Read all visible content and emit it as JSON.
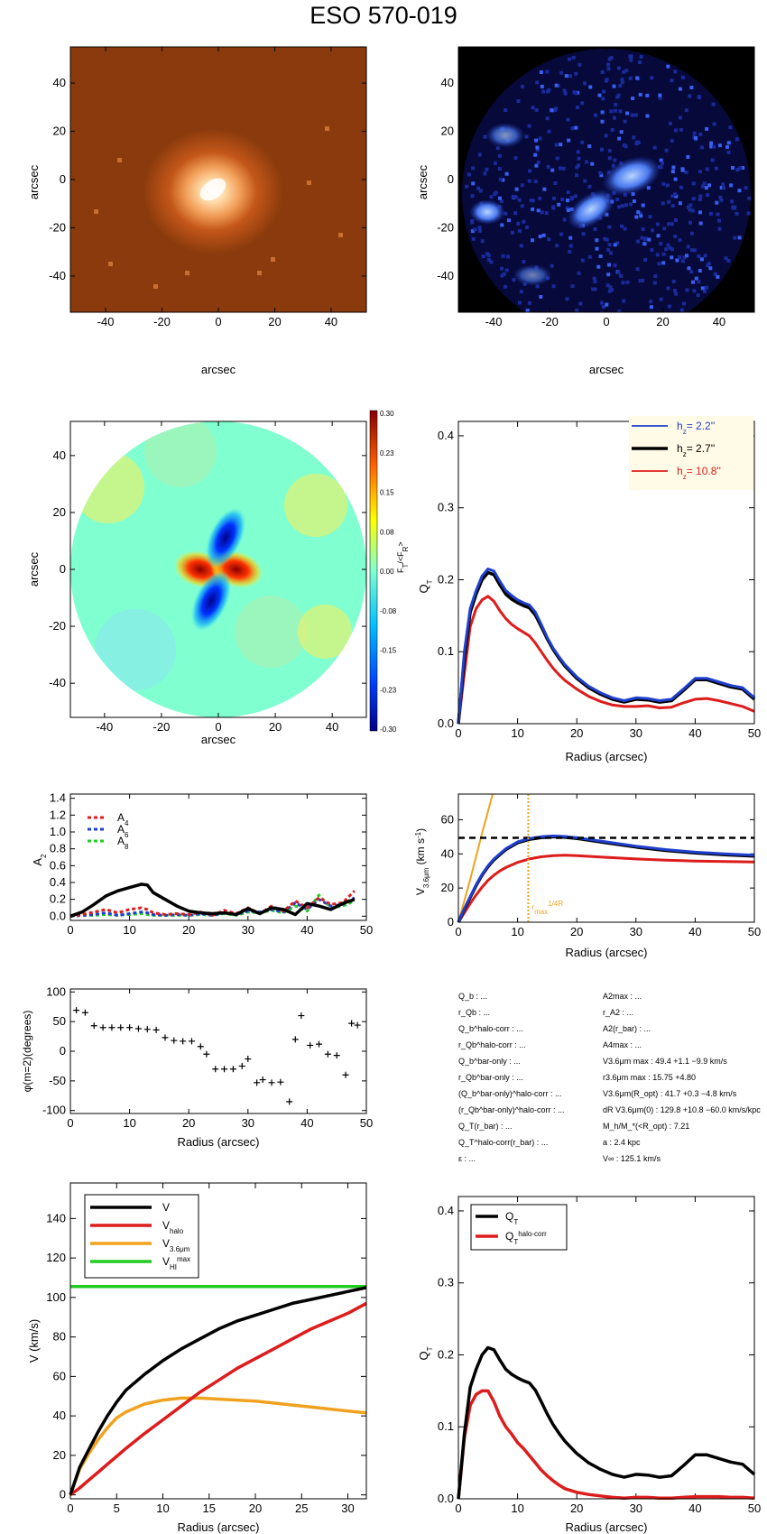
{
  "title": "ESO 570-019",
  "colors": {
    "blue": "#1f3fcc",
    "black": "#000000",
    "red": "#dd1c1c",
    "orange": "#f0a21e",
    "green": "#22cc22",
    "cream": "#fffbe6"
  },
  "panels": {
    "image1": {
      "xlabel": "arcsec",
      "ylabel": "arcsec",
      "ticks": [
        "-40",
        "-20",
        "0",
        "20",
        "40"
      ]
    },
    "image2": {
      "xlabel": "arcsec",
      "ylabel": "arcsec",
      "ticks": [
        "-40",
        "-20",
        "0",
        "20",
        "40"
      ]
    },
    "forcemap": {
      "xlabel": "arcsec",
      "ylabel": "arcsec",
      "ticks": [
        "-40",
        "-20",
        "0",
        "20",
        "40"
      ],
      "colorbar_ticks": [
        "0.30",
        "0.23",
        "0.15",
        "0.08",
        "0.00",
        "-0.08",
        "-0.15",
        "-0.23",
        "-0.30"
      ],
      "colorbar_label": "F_T/<F_R>"
    },
    "info": {
      "left": [
        [
          "Q_b : ...",
          "",
          ""
        ],
        [
          "r_Qb : ...",
          "",
          ""
        ],
        [
          "Q_b^halo-corr : ...",
          "",
          ""
        ],
        [
          "r_Qb^halo-corr : ...",
          "",
          ""
        ],
        [
          "Q_b^bar-only : ...",
          "",
          ""
        ],
        [
          "r_Qb^bar-only : ...",
          "",
          ""
        ],
        [
          "(Q_b^bar-only)^halo-corr : ...",
          "",
          ""
        ],
        [
          "(r_Qb^bar-only)^halo-corr : ...",
          "",
          ""
        ],
        [
          "Q_T(r_bar) : ...",
          "",
          ""
        ],
        [
          "Q_T^halo-corr(r_bar) : ...",
          "",
          ""
        ],
        [
          "ε : ...",
          "",
          ""
        ]
      ],
      "right": [
        "A2max : ...",
        "r_A2 : ...",
        "A2(r_bar) : ...",
        "A4max : ...",
        "V3.6μm max :  49.4 +1.1 −9.9 km/s",
        "r3.6μm max :  15.75 +4.80",
        "V3.6μm(R_opt) :  41.7 +0.3 −4.8 km/s",
        "dR V3.6μm(0) :  129.8 +10.8 −60.0 km/s/kpc",
        "M_h/M_*(<R_opt) :  7.21",
        "a :   2.4 kpc",
        "V∞ :  125.1 km/s"
      ]
    }
  },
  "chart_data": [
    {
      "type": "heatmap",
      "id": "image1",
      "title": "",
      "xlabel": "arcsec",
      "ylabel": "arcsec",
      "xlim": [
        -52,
        52
      ],
      "ylim": [
        -55,
        55
      ]
    },
    {
      "type": "heatmap",
      "id": "image2",
      "title": "",
      "xlabel": "arcsec",
      "ylabel": "arcsec",
      "xlim": [
        -52,
        52
      ],
      "ylim": [
        -55,
        55
      ]
    },
    {
      "type": "heatmap",
      "id": "forcemap",
      "title": "",
      "xlabel": "arcsec",
      "ylabel": "arcsec",
      "xlim": [
        -52,
        52
      ],
      "ylim": [
        -52,
        52
      ],
      "zlim": [
        -0.3,
        0.3
      ]
    },
    {
      "type": "line",
      "id": "qt",
      "xlabel": "Radius (arcsec)",
      "ylabel": "Q_T",
      "xlim": [
        0,
        50
      ],
      "ylim": [
        0,
        0.42
      ],
      "x": [
        0,
        1,
        2,
        3,
        4,
        5,
        6,
        7,
        8,
        9,
        10,
        11,
        12,
        13,
        14,
        15,
        16,
        17,
        18,
        20,
        22,
        24,
        26,
        28,
        30,
        32,
        34,
        36,
        38,
        40,
        42,
        44,
        46,
        48,
        50
      ],
      "legend_pos": "top-right",
      "series": [
        {
          "name": "h_z=  2.2''",
          "color": "#1f3fcc",
          "values": [
            0,
            0.1,
            0.16,
            0.185,
            0.205,
            0.215,
            0.212,
            0.198,
            0.185,
            0.178,
            0.172,
            0.168,
            0.165,
            0.155,
            0.138,
            0.12,
            0.105,
            0.093,
            0.082,
            0.065,
            0.052,
            0.043,
            0.036,
            0.032,
            0.036,
            0.035,
            0.032,
            0.034,
            0.048,
            0.063,
            0.063,
            0.058,
            0.053,
            0.05,
            0.036
          ]
        },
        {
          "name": "h_z=  2.7''",
          "color": "#000000",
          "values": [
            0,
            0.09,
            0.155,
            0.18,
            0.2,
            0.21,
            0.207,
            0.193,
            0.18,
            0.173,
            0.168,
            0.164,
            0.161,
            0.151,
            0.135,
            0.118,
            0.103,
            0.091,
            0.08,
            0.063,
            0.05,
            0.041,
            0.034,
            0.03,
            0.034,
            0.033,
            0.03,
            0.032,
            0.046,
            0.061,
            0.061,
            0.056,
            0.051,
            0.048,
            0.034
          ]
        },
        {
          "name": "h_z=  10.8''",
          "color": "#dd1c1c",
          "values": [
            0,
            0.07,
            0.135,
            0.16,
            0.172,
            0.177,
            0.17,
            0.157,
            0.146,
            0.138,
            0.132,
            0.127,
            0.122,
            0.112,
            0.1,
            0.088,
            0.077,
            0.068,
            0.06,
            0.048,
            0.038,
            0.031,
            0.026,
            0.024,
            0.024,
            0.025,
            0.022,
            0.023,
            0.029,
            0.034,
            0.035,
            0.032,
            0.028,
            0.024,
            0.017
          ]
        }
      ]
    },
    {
      "type": "line",
      "id": "a2",
      "xlabel": "",
      "ylabel": "A_2",
      "xlim": [
        0,
        50
      ],
      "ylim": [
        -0.05,
        1.45
      ],
      "x": [
        0,
        2,
        4,
        6,
        8,
        10,
        12,
        13,
        14,
        16,
        18,
        20,
        22,
        24,
        26,
        28,
        30,
        32,
        34,
        36,
        38,
        40,
        42,
        44,
        46,
        48
      ],
      "legend_pos": "top-left",
      "series": [
        {
          "name": "A2",
          "color": "#000000",
          "values": [
            0,
            0.05,
            0.14,
            0.24,
            0.3,
            0.34,
            0.38,
            0.37,
            0.28,
            0.2,
            0.12,
            0.06,
            0.04,
            0.03,
            0.04,
            0.02,
            0.09,
            0.03,
            0.1,
            0.08,
            0.02,
            0.15,
            0.12,
            0.08,
            0.15,
            0.2
          ]
        },
        {
          "name": "A4",
          "color": "#dd1c1c",
          "values": [
            0,
            0.02,
            0.05,
            0.08,
            0.04,
            0.08,
            0.1,
            0.08,
            0.04,
            0.02,
            0.03,
            0.02,
            0.05,
            0.01,
            0.07,
            0.03,
            0.1,
            0.03,
            0.12,
            0.06,
            0.18,
            0.1,
            0.22,
            0.14,
            0.16,
            0.3
          ]
        },
        {
          "name": "A6",
          "color": "#1f3fcc",
          "values": [
            0,
            0.01,
            0.02,
            0.04,
            0.01,
            0.03,
            0.05,
            0.04,
            0.02,
            0.01,
            0.02,
            0.01,
            0.03,
            0.01,
            0.04,
            0.02,
            0.06,
            0.05,
            0.08,
            0.05,
            0.16,
            0.08,
            0.2,
            0.12,
            0.14,
            0.22
          ]
        },
        {
          "name": "A8",
          "color": "#22cc22",
          "values": [
            0,
            0.01,
            0.01,
            0.02,
            0.01,
            0.02,
            0.03,
            0.02,
            0.01,
            0.01,
            0.01,
            0.01,
            0.02,
            0.01,
            0.03,
            0.01,
            0.05,
            0.04,
            0.07,
            0.04,
            0.12,
            0.06,
            0.25,
            0.1,
            0.12,
            0.18
          ]
        }
      ]
    },
    {
      "type": "line",
      "id": "v36",
      "xlabel": "Radius (arcsec)",
      "ylabel": "V_3.6μm (km s^-1)",
      "xlim": [
        0,
        50
      ],
      "ylim": [
        0,
        75
      ],
      "x": [
        0,
        1,
        2,
        3,
        4,
        5,
        6,
        7,
        8,
        10,
        12,
        14,
        16,
        18,
        20,
        25,
        30,
        35,
        40,
        45,
        50
      ],
      "vmax": 49.4,
      "rmax_line": 11.8,
      "rmax_label": "r_max^1/4R_bar",
      "series": [
        {
          "name": "blue",
          "color": "#1f3fcc",
          "values": [
            0,
            8,
            15,
            22,
            28,
            33,
            37,
            40,
            43,
            47,
            49,
            50,
            50.5,
            50.2,
            49.5,
            47,
            44.5,
            42.5,
            41,
            40,
            39.2
          ]
        },
        {
          "name": "black",
          "color": "#000000",
          "values": [
            0,
            7.5,
            14.5,
            21.5,
            27.5,
            32.5,
            36.5,
            39.5,
            42.5,
            46.5,
            48.5,
            49.5,
            50,
            49.7,
            49,
            46.5,
            44,
            42,
            40.5,
            39.5,
            38.7
          ]
        },
        {
          "name": "red",
          "color": "#dd1c1c",
          "values": [
            0,
            5.5,
            11,
            16,
            20.5,
            24.5,
            27.5,
            30,
            32,
            35,
            37,
            38.3,
            39,
            39.2,
            39,
            38,
            37,
            36.3,
            35.8,
            35.5,
            35.3
          ]
        },
        {
          "name": "orange",
          "color": "#f0a21e",
          "x": [
            0,
            2,
            4,
            5.8
          ],
          "values": [
            0,
            25,
            52,
            75
          ]
        }
      ]
    },
    {
      "type": "scatter",
      "id": "phase",
      "xlabel": "Radius (arcsec)",
      "ylabel": "φ(m=2)(degrees)",
      "xlim": [
        0,
        50
      ],
      "ylim": [
        -105,
        105
      ],
      "x": [
        1,
        2.5,
        4,
        5.5,
        7,
        8.5,
        10,
        11.5,
        13,
        14.5,
        16,
        17.5,
        19,
        20.5,
        22,
        23,
        24.5,
        26,
        27.5,
        29,
        30,
        31.5,
        32.5,
        34,
        35.5,
        37,
        38,
        39,
        40.5,
        42,
        43.5,
        45,
        46.5,
        47.5,
        48.5
      ],
      "y": [
        69,
        65,
        43,
        40,
        40,
        40,
        40,
        38,
        37,
        36,
        23,
        18,
        17,
        17,
        8,
        -5,
        -30,
        -30,
        -30,
        -25,
        -13,
        -53,
        -48,
        -53,
        -52,
        -85,
        20,
        60,
        10,
        12,
        -5,
        -7,
        -40,
        47,
        44
      ]
    },
    {
      "type": "line",
      "id": "vcurve",
      "xlabel": "Radius (arcsec)",
      "ylabel": "V (km/s)",
      "xlim": [
        0,
        32
      ],
      "ylim": [
        -2,
        158
      ],
      "x": [
        0,
        1,
        2,
        3,
        4,
        5,
        6,
        8,
        10,
        12,
        14,
        16,
        18,
        20,
        22,
        24,
        26,
        28,
        30,
        32
      ],
      "legend_pos": "top-left",
      "series": [
        {
          "name": "V",
          "color": "#000000",
          "values": [
            0,
            14,
            23,
            32,
            40,
            47,
            53,
            61,
            68,
            74,
            79,
            84,
            88,
            91,
            94,
            97,
            99,
            101,
            103,
            105
          ]
        },
        {
          "name": "V_halo",
          "color": "#dd1c1c",
          "values": [
            0,
            3.5,
            7.5,
            11.5,
            15.5,
            19.5,
            23.5,
            31,
            38,
            45,
            52,
            58,
            64,
            69,
            74,
            79,
            84,
            88,
            92,
            97
          ]
        },
        {
          "name": "V_3.6μm",
          "color": "#f0a21e",
          "values": [
            0,
            13,
            21,
            28,
            34,
            39,
            42,
            46,
            48,
            49,
            49,
            48.5,
            48,
            47.5,
            46.5,
            45.5,
            44.5,
            43.5,
            42.5,
            41.5
          ]
        },
        {
          "name": "V_HI^max",
          "color": "#22cc22",
          "values": [
            105.5,
            105.5,
            105.5,
            105.5,
            105.5,
            105.5,
            105.5,
            105.5,
            105.5,
            105.5,
            105.5,
            105.5,
            105.5,
            105.5,
            105.5,
            105.5,
            105.5,
            105.5,
            105.5,
            105.5
          ]
        }
      ]
    },
    {
      "type": "line",
      "id": "qthalo",
      "xlabel": "Radius (arcsec)",
      "ylabel": "Q_T",
      "xlim": [
        0,
        50
      ],
      "ylim": [
        0,
        0.42
      ],
      "x": [
        0,
        1,
        2,
        3,
        4,
        5,
        6,
        7,
        8,
        9,
        10,
        11,
        12,
        13,
        14,
        15,
        16,
        17,
        18,
        20,
        22,
        24,
        26,
        28,
        30,
        32,
        34,
        36,
        38,
        40,
        42,
        44,
        46,
        48,
        50
      ],
      "legend_pos": "top-left",
      "series": [
        {
          "name": "Q_T",
          "color": "#000000",
          "values": [
            0,
            0.09,
            0.155,
            0.18,
            0.2,
            0.21,
            0.207,
            0.193,
            0.18,
            0.173,
            0.168,
            0.164,
            0.161,
            0.151,
            0.135,
            0.118,
            0.103,
            0.091,
            0.08,
            0.063,
            0.05,
            0.041,
            0.034,
            0.03,
            0.034,
            0.033,
            0.03,
            0.032,
            0.046,
            0.061,
            0.061,
            0.056,
            0.051,
            0.048,
            0.034
          ]
        },
        {
          "name": "Q_T^halo-corr",
          "color": "#dd1c1c",
          "values": [
            0,
            0.085,
            0.13,
            0.145,
            0.15,
            0.15,
            0.135,
            0.115,
            0.1,
            0.09,
            0.078,
            0.07,
            0.06,
            0.05,
            0.04,
            0.032,
            0.025,
            0.019,
            0.014,
            0.009,
            0.006,
            0.004,
            0.002,
            0.001,
            0.002,
            0.002,
            0.001,
            0.001,
            0.002,
            0.003,
            0.003,
            0.003,
            0.002,
            0.002,
            0.001
          ]
        }
      ]
    }
  ]
}
